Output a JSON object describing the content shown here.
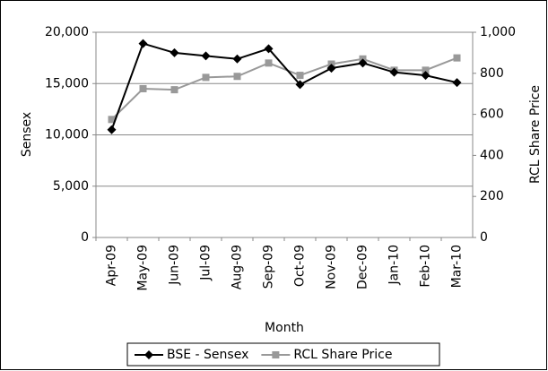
{
  "chart_data": {
    "type": "line",
    "x_label": "Month",
    "y_label": "Sensex",
    "y2_label": "RCL Share Price",
    "categories": [
      "Apr-09",
      "May-09",
      "Jun-09",
      "Jul-09",
      "Aug-09",
      "Sep-09",
      "Oct-09",
      "Nov-09",
      "Dec-09",
      "Jan-10",
      "Feb-10",
      "Mar-10"
    ],
    "series": [
      {
        "name": "BSE - Sensex",
        "color": "#000000",
        "marker": "diamond",
        "axis": "y",
        "values": [
          10500,
          18900,
          18000,
          17700,
          17400,
          18400,
          14900,
          16500,
          17000,
          16100,
          15800,
          15100
        ]
      },
      {
        "name": "RCL Share Price",
        "color": "#999999",
        "marker": "square",
        "axis": "y2",
        "values": [
          575,
          725,
          720,
          780,
          785,
          850,
          790,
          845,
          870,
          815,
          815,
          875
        ]
      }
    ],
    "ylim": [
      0,
      20000
    ],
    "yticks": [
      0,
      {
        "value": 5000,
        "label": "5,000"
      },
      {
        "value": 10000,
        "label": "10,000"
      },
      {
        "value": 15000,
        "label": "15,000"
      },
      {
        "value": 20000,
        "label": "20,000"
      }
    ],
    "y2lim": [
      0,
      1000
    ],
    "y2ticks": [
      0,
      200,
      400,
      600,
      800,
      {
        "value": 1000,
        "label": "1,000"
      }
    ],
    "grid": true,
    "legend": "bottom"
  }
}
